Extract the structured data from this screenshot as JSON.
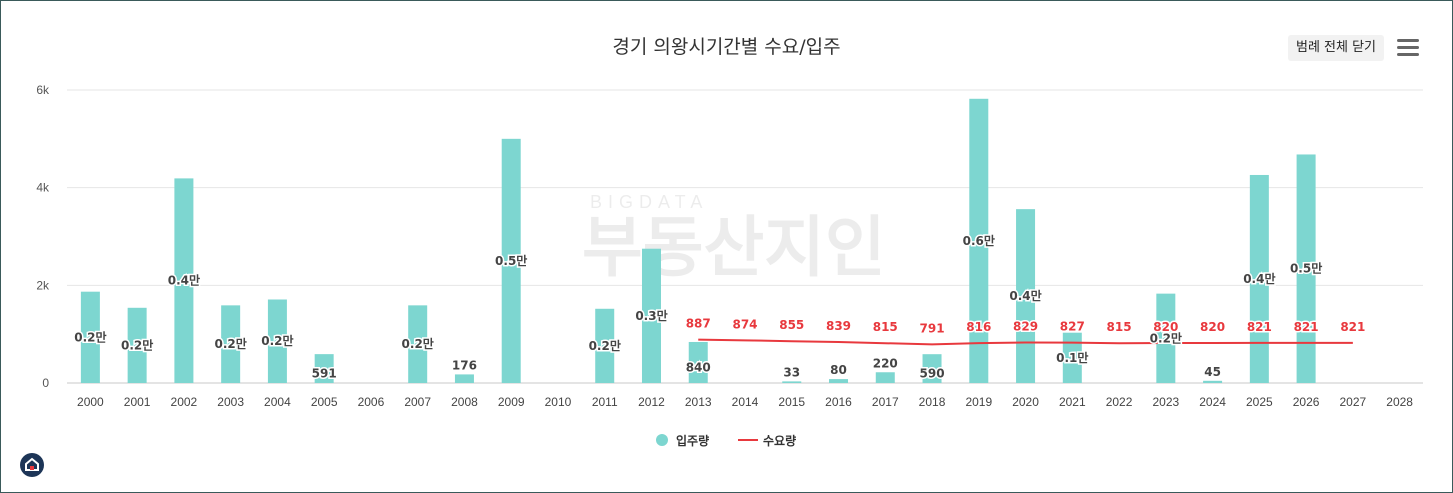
{
  "header": {
    "title": "경기 의왕시기간별 수요/입주",
    "legend_toggle_label": "범례 전체 닫기"
  },
  "watermark": {
    "sub": "BIGDATA",
    "main": "부동산지인"
  },
  "colors": {
    "supply": "#7dd6d0",
    "demand": "#e8393e"
  },
  "chart_data": {
    "type": "bar",
    "title": "경기 의왕시기간별 수요/입주",
    "categories": [
      "2000",
      "2001",
      "2002",
      "2003",
      "2004",
      "2005",
      "2006",
      "2007",
      "2008",
      "2009",
      "2010",
      "2011",
      "2012",
      "2013",
      "2014",
      "2015",
      "2016",
      "2017",
      "2018",
      "2019",
      "2020",
      "2021",
      "2022",
      "2023",
      "2024",
      "2025",
      "2026",
      "2027",
      "2028"
    ],
    "ylim": [
      0,
      6000
    ],
    "yticks": [
      0,
      2000,
      4000,
      6000
    ],
    "ytick_labels": [
      "0",
      "2k",
      "4k",
      "6k"
    ],
    "series": [
      {
        "name": "입주량",
        "type": "bar",
        "values": [
          1870,
          1540,
          4190,
          1590,
          1710,
          591,
          0,
          1590,
          176,
          5000,
          0,
          1520,
          2750,
          840,
          0,
          33,
          80,
          220,
          590,
          5820,
          3560,
          1030,
          0,
          1830,
          45,
          4260,
          4680,
          0,
          0
        ],
        "labels": [
          "0.2만",
          "0.2만",
          "0.4만",
          "0.2만",
          "0.2만",
          "591",
          "",
          "0.2만",
          "176",
          "0.5만",
          "",
          "0.2만",
          "0.3만",
          "840",
          "",
          "33",
          "80",
          "220",
          "590",
          "0.6만",
          "0.4만",
          "0.1만",
          "",
          "0.2만",
          "45",
          "0.4만",
          "0.5만",
          "",
          ""
        ]
      },
      {
        "name": "수요량",
        "type": "line",
        "values": [
          null,
          null,
          null,
          null,
          null,
          null,
          null,
          null,
          null,
          null,
          null,
          null,
          null,
          887,
          874,
          855,
          839,
          815,
          791,
          816,
          829,
          827,
          815,
          820,
          820,
          821,
          821,
          821,
          null
        ],
        "labels": [
          "",
          "",
          "",
          "",
          "",
          "",
          "",
          "",
          "",
          "",
          "",
          "",
          "",
          "887",
          "874",
          "855",
          "839",
          "815",
          "791",
          "816",
          "829",
          "827",
          "815",
          "820",
          "820",
          "821",
          "821",
          "821",
          ""
        ]
      }
    ],
    "legend": [
      "입주량",
      "수요량"
    ]
  }
}
